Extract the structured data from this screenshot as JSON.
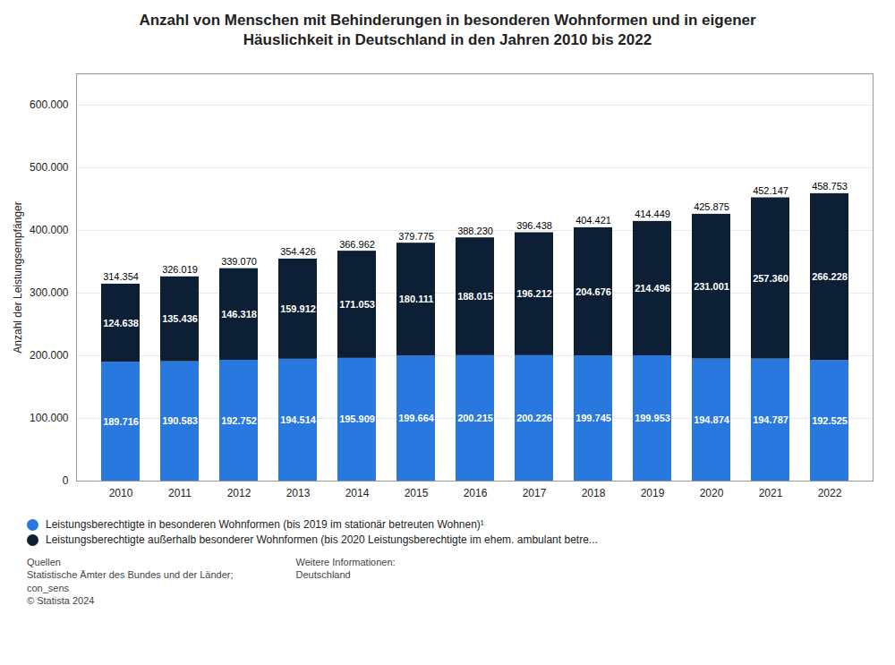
{
  "chart_data": {
    "type": "bar",
    "stacked": true,
    "title": "Anzahl von Menschen mit Behinderungen in besonderen Wohnformen und in eigener\nHäuslichkeit in Deutschland in den Jahren 2010 bis 2022",
    "ylabel": "Anzahl der Leistungsempfänger",
    "categories": [
      "2010",
      "2011",
      "2012",
      "2013",
      "2014",
      "2015",
      "2016",
      "2017",
      "2018",
      "2019",
      "2020",
      "2021",
      "2022"
    ],
    "series": [
      {
        "name": "Leistungsberechtigte in besonderen Wohnformen (bis 2019 im stationär betreuten Wohnen)¹",
        "color": "#2878e0",
        "values": [
          189716,
          190583,
          192752,
          194514,
          195909,
          199664,
          200215,
          200226,
          199745,
          199953,
          194874,
          194787,
          192525
        ],
        "value_labels": [
          "189.716",
          "190.583",
          "192.752",
          "194.514",
          "195.909",
          "199.664",
          "200.215",
          "200.226",
          "199.745",
          "199.953",
          "194.874",
          "194.787",
          "192.525"
        ]
      },
      {
        "name": "Leistungsberechtigte außerhalb besonderer Wohnformen (bis 2020 Leistungsberechtigte im ehem. ambulant betre...",
        "color": "#0d1f35",
        "values": [
          124638,
          135436,
          146318,
          159912,
          171053,
          180111,
          188015,
          196212,
          204676,
          214496,
          231001,
          257360,
          266228
        ],
        "value_labels": [
          "124.638",
          "135.436",
          "146.318",
          "159.912",
          "171.053",
          "180.111",
          "188.015",
          "196.212",
          "204.676",
          "214.496",
          "231.001",
          "257.360",
          "266.228"
        ]
      }
    ],
    "totals": [
      314354,
      326019,
      339070,
      354426,
      366962,
      379775,
      388230,
      396438,
      404421,
      414449,
      425875,
      452147,
      458753
    ],
    "total_labels": [
      "314.354",
      "326.019",
      "339.070",
      "354.426",
      "366.962",
      "379.775",
      "388.230",
      "396.438",
      "404.421",
      "414.449",
      "425.875",
      "452.147",
      "458.753"
    ],
    "ylim": [
      0,
      650000
    ],
    "yticks": [
      0,
      {
        "value": 100000,
        "label": "100.000"
      },
      {
        "value": 200000,
        "label": "200.000"
      },
      {
        "value": 300000,
        "label": "300.000"
      },
      {
        "value": 400000,
        "label": "400.000"
      },
      {
        "value": 500000,
        "label": "500.000"
      },
      {
        "value": 600000,
        "label": "600.000"
      }
    ],
    "grid": true,
    "data_labels": true,
    "legend": "bottom",
    "annotations": [
      "Quellen\nStatistische Ämter des Bundes und der Länder;\ncon_sens\n© Statista 2024",
      "Weitere Informationen:\nDeutschland"
    ]
  }
}
